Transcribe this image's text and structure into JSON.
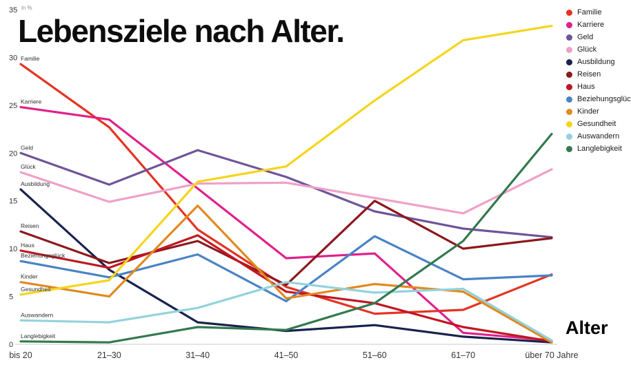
{
  "chart_data": {
    "type": "line",
    "title": "Lebensziele nach Alter.",
    "unit_label": "in %",
    "xlabel": "Alter",
    "ylim": [
      0,
      35
    ],
    "yticks": [
      0,
      5,
      10,
      15,
      20,
      25,
      30,
      35
    ],
    "categories": [
      "bis 20",
      "21–30",
      "31–40",
      "41–50",
      "51–60",
      "61–70",
      "über 70 Jahre"
    ],
    "legend_position": "top-right",
    "grid": false,
    "series": [
      {
        "name": "Familie",
        "color": "#e53322",
        "values": [
          29.3,
          22.7,
          12.0,
          6.0,
          3.2,
          3.6,
          7.3
        ]
      },
      {
        "name": "Karriere",
        "color": "#e0218a",
        "values": [
          24.8,
          23.5,
          16.3,
          9.0,
          9.5,
          1.2,
          0.4
        ]
      },
      {
        "name": "Geld",
        "color": "#6f5499",
        "values": [
          20.0,
          16.7,
          20.3,
          17.5,
          13.9,
          12.1,
          11.2
        ]
      },
      {
        "name": "Glück",
        "color": "#efa0c8",
        "values": [
          18.0,
          14.9,
          16.8,
          16.9,
          15.3,
          13.7,
          18.3
        ]
      },
      {
        "name": "Ausbildung",
        "color": "#19224e",
        "values": [
          16.2,
          7.8,
          2.3,
          1.4,
          2.0,
          0.8,
          0.2
        ]
      },
      {
        "name": "Reisen",
        "color": "#8c181d",
        "values": [
          11.8,
          8.5,
          10.8,
          6.2,
          15.0,
          10.0,
          11.1
        ]
      },
      {
        "name": "Haus",
        "color": "#c01722",
        "values": [
          9.8,
          8.0,
          11.4,
          5.5,
          4.3,
          1.8,
          0.3
        ]
      },
      {
        "name": "Beziehungsglück",
        "color": "#4983c6",
        "values": [
          8.7,
          7.0,
          9.4,
          4.5,
          11.3,
          6.8,
          7.2
        ]
      },
      {
        "name": "Kinder",
        "color": "#e1891f",
        "values": [
          6.5,
          5.0,
          14.5,
          4.8,
          6.3,
          5.5,
          0.2
        ]
      },
      {
        "name": "Gesundheit",
        "color": "#f6d41c",
        "values": [
          5.2,
          6.7,
          17.0,
          18.6,
          25.5,
          31.8,
          33.3
        ]
      },
      {
        "name": "Auswandern",
        "color": "#93d2dc",
        "values": [
          2.5,
          2.3,
          3.8,
          6.5,
          5.4,
          5.8,
          0.4
        ]
      },
      {
        "name": "Langlebigkeit",
        "color": "#33794e",
        "values": [
          0.3,
          0.2,
          1.8,
          1.5,
          4.3,
          10.8,
          22.0
        ]
      }
    ],
    "axis_color": "#c8c8c8"
  }
}
